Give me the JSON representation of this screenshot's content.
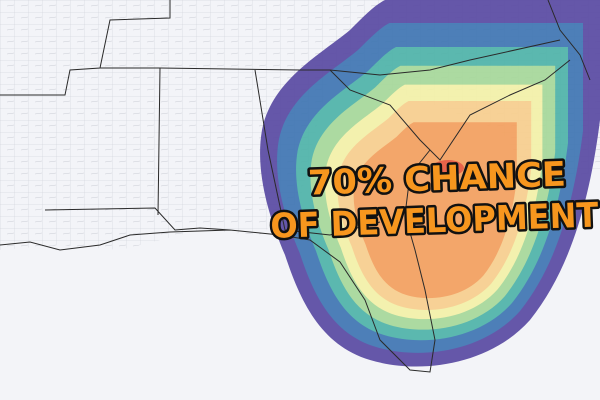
{
  "overlay": {
    "line1": "70% CHANCE",
    "line2": "OF DEVELOPMENT"
  }
}
